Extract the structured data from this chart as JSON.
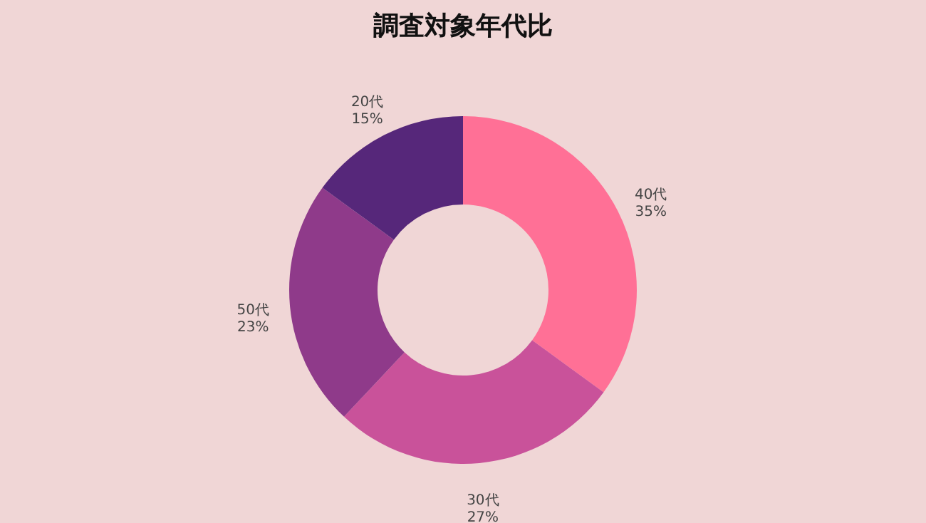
{
  "chart_data": {
    "type": "donut",
    "title": "調査対象年代比",
    "categories": [
      "40代",
      "30代",
      "50代",
      "20代"
    ],
    "values": [
      35,
      27,
      23,
      15
    ],
    "value_labels": [
      "35%",
      "27%",
      "23%",
      "15%"
    ],
    "colors": [
      "#ff7096",
      "#c9529a",
      "#8f3a8a",
      "#56277a"
    ]
  }
}
